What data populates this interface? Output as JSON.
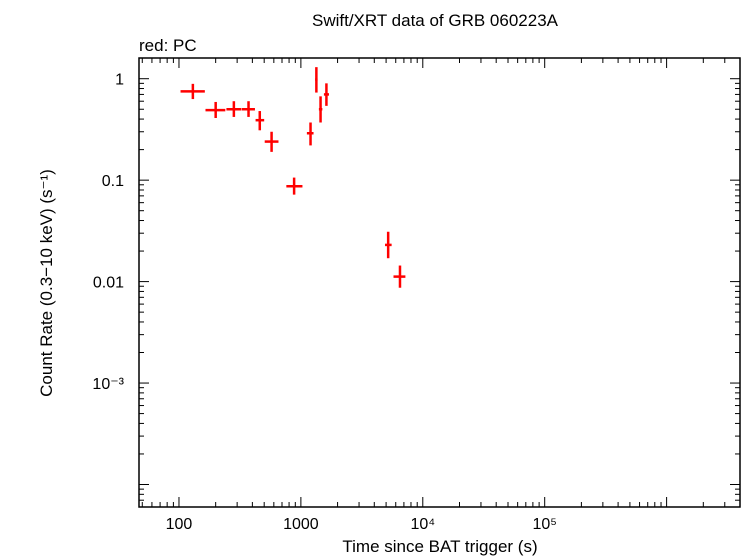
{
  "chart_data": {
    "type": "scatter",
    "title": "Swift/XRT data of GRB 060223A",
    "subtitle": "red: PC",
    "xlabel": "Time since BAT trigger (s)",
    "ylabel": "Count Rate (0.3−10 keV) (s⁻¹)",
    "xscale": "log",
    "yscale": "log",
    "xlim": [
      47,
      4000000
    ],
    "ylim": [
      6e-05,
      1.6
    ],
    "x_ticks": [
      {
        "value": 100,
        "label": "100"
      },
      {
        "value": 1000,
        "label": "1000"
      },
      {
        "value": 10000,
        "label": "10⁴"
      },
      {
        "value": 100000,
        "label": "10⁵"
      }
    ],
    "y_ticks": [
      {
        "value": 1,
        "label": "1"
      },
      {
        "value": 0.1,
        "label": "0.1"
      },
      {
        "value": 0.01,
        "label": "0.01"
      },
      {
        "value": 0.001,
        "label": "10⁻³"
      }
    ],
    "grid": false,
    "legend": "none",
    "series": [
      {
        "color": "#ff0000",
        "points": [
          {
            "x": 130,
            "xlo": 103,
            "xhi": 163,
            "y": 0.75,
            "ylo": 0.63,
            "yhi": 0.89
          },
          {
            "x": 200,
            "xlo": 165,
            "xhi": 240,
            "y": 0.49,
            "ylo": 0.41,
            "yhi": 0.59
          },
          {
            "x": 282,
            "xlo": 245,
            "xhi": 325,
            "y": 0.5,
            "ylo": 0.42,
            "yhi": 0.6
          },
          {
            "x": 372,
            "xlo": 328,
            "xhi": 420,
            "y": 0.5,
            "ylo": 0.42,
            "yhi": 0.6
          },
          {
            "x": 460,
            "xlo": 425,
            "xhi": 500,
            "y": 0.39,
            "ylo": 0.31,
            "yhi": 0.48
          },
          {
            "x": 575,
            "xlo": 505,
            "xhi": 655,
            "y": 0.24,
            "ylo": 0.19,
            "yhi": 0.3
          },
          {
            "x": 880,
            "xlo": 760,
            "xhi": 1030,
            "y": 0.087,
            "ylo": 0.072,
            "yhi": 0.106
          },
          {
            "x": 1200,
            "xlo": 1120,
            "xhi": 1270,
            "y": 0.29,
            "ylo": 0.22,
            "yhi": 0.37
          },
          {
            "x": 1340,
            "xlo": 1310,
            "xhi": 1370,
            "y": 0.98,
            "ylo": 0.73,
            "yhi": 1.3
          },
          {
            "x": 1450,
            "xlo": 1405,
            "xhi": 1500,
            "y": 0.5,
            "ylo": 0.37,
            "yhi": 0.67
          },
          {
            "x": 1620,
            "xlo": 1545,
            "xhi": 1700,
            "y": 0.7,
            "ylo": 0.54,
            "yhi": 0.9
          },
          {
            "x": 5200,
            "xlo": 4900,
            "xhi": 5550,
            "y": 0.023,
            "ylo": 0.017,
            "yhi": 0.031
          },
          {
            "x": 6500,
            "xlo": 5750,
            "xhi": 7200,
            "y": 0.0112,
            "ylo": 0.0087,
            "yhi": 0.0144
          }
        ]
      }
    ]
  }
}
